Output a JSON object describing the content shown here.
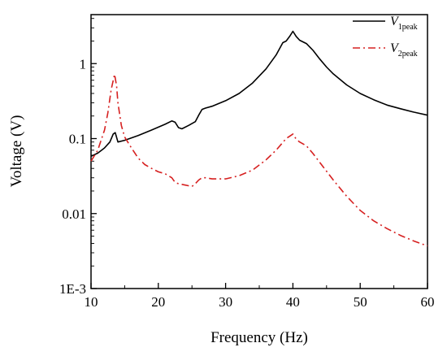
{
  "chart_data": {
    "type": "line",
    "xlabel": "Frequency (Hz)",
    "ylabel": "Voltage (V)",
    "xlim": [
      10,
      60
    ],
    "ylim": [
      0.001,
      4.5
    ],
    "yscale": "log",
    "grid": false,
    "legend_position": "top-right",
    "x_ticks": [
      10,
      20,
      30,
      40,
      50,
      60
    ],
    "x_tick_labels": [
      "10",
      "20",
      "30",
      "40",
      "50",
      "60"
    ],
    "y_ticks": [
      0.001,
      0.01,
      0.1,
      1
    ],
    "y_tick_labels": [
      "1E-3",
      "0.01",
      "0.1",
      "1"
    ],
    "series": [
      {
        "name": "V",
        "name_sub": "1peak",
        "color": "#000000",
        "style": "solid",
        "points": [
          [
            10,
            0.058
          ],
          [
            11,
            0.064
          ],
          [
            12,
            0.075
          ],
          [
            12.8,
            0.09
          ],
          [
            13.3,
            0.115
          ],
          [
            13.6,
            0.12
          ],
          [
            14,
            0.09
          ],
          [
            15,
            0.095
          ],
          [
            17,
            0.11
          ],
          [
            19,
            0.13
          ],
          [
            21,
            0.155
          ],
          [
            22,
            0.172
          ],
          [
            22.5,
            0.165
          ],
          [
            23,
            0.14
          ],
          [
            23.5,
            0.135
          ],
          [
            24.5,
            0.15
          ],
          [
            25.5,
            0.168
          ],
          [
            26,
            0.205
          ],
          [
            26.5,
            0.245
          ],
          [
            27,
            0.255
          ],
          [
            28,
            0.27
          ],
          [
            30,
            0.32
          ],
          [
            32,
            0.4
          ],
          [
            34,
            0.55
          ],
          [
            36,
            0.85
          ],
          [
            37.5,
            1.3
          ],
          [
            38.5,
            1.9
          ],
          [
            39,
            2.0
          ],
          [
            39.5,
            2.3
          ],
          [
            40,
            2.7
          ],
          [
            40.5,
            2.3
          ],
          [
            41,
            2.05
          ],
          [
            42,
            1.85
          ],
          [
            43,
            1.5
          ],
          [
            44,
            1.15
          ],
          [
            45,
            0.9
          ],
          [
            46,
            0.73
          ],
          [
            48,
            0.52
          ],
          [
            50,
            0.4
          ],
          [
            52,
            0.33
          ],
          [
            54,
            0.28
          ],
          [
            56,
            0.25
          ],
          [
            58,
            0.225
          ],
          [
            60,
            0.205
          ]
        ]
      },
      {
        "name": "V",
        "name_sub": "2peak",
        "color": "#d62020",
        "style": "dashdot",
        "points": [
          [
            10,
            0.05
          ],
          [
            11,
            0.07
          ],
          [
            12,
            0.13
          ],
          [
            12.5,
            0.22
          ],
          [
            13,
            0.45
          ],
          [
            13.5,
            0.72
          ],
          [
            13.8,
            0.5
          ],
          [
            14,
            0.3
          ],
          [
            14.5,
            0.15
          ],
          [
            15,
            0.105
          ],
          [
            16,
            0.075
          ],
          [
            17,
            0.055
          ],
          [
            18,
            0.045
          ],
          [
            19,
            0.04
          ],
          [
            20,
            0.036
          ],
          [
            21,
            0.034
          ],
          [
            22,
            0.03
          ],
          [
            22.5,
            0.026
          ],
          [
            23,
            0.025
          ],
          [
            24,
            0.024
          ],
          [
            25,
            0.023
          ],
          [
            25.5,
            0.025
          ],
          [
            26,
            0.028
          ],
          [
            26.5,
            0.03
          ],
          [
            27,
            0.03
          ],
          [
            28,
            0.029
          ],
          [
            30,
            0.029
          ],
          [
            32,
            0.032
          ],
          [
            34,
            0.038
          ],
          [
            36,
            0.052
          ],
          [
            37.5,
            0.07
          ],
          [
            39,
            0.1
          ],
          [
            40,
            0.115
          ],
          [
            40.5,
            0.098
          ],
          [
            41,
            0.09
          ],
          [
            42,
            0.08
          ],
          [
            43,
            0.063
          ],
          [
            44,
            0.048
          ],
          [
            46,
            0.028
          ],
          [
            48,
            0.017
          ],
          [
            50,
            0.011
          ],
          [
            52,
            0.008
          ],
          [
            54,
            0.0063
          ],
          [
            56,
            0.0051
          ],
          [
            58,
            0.0043
          ],
          [
            60,
            0.0037
          ]
        ]
      }
    ]
  }
}
